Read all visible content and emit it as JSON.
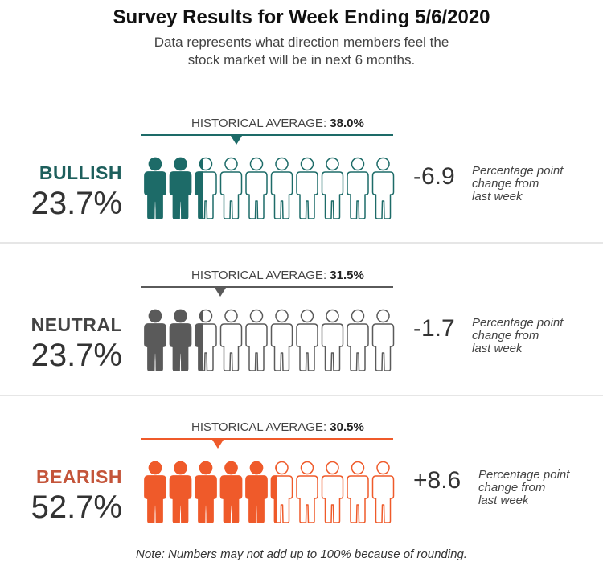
{
  "title": "Survey Results for Week Ending 5/6/2020",
  "subtitle_line1": "Data represents what direction members feel the",
  "subtitle_line2": "stock market will be in next 6 months.",
  "historical_prefix": "HISTORICAL AVERAGE:",
  "note": "Note: Numbers may not add up to 100% because of rounding.",
  "chart_data": {
    "type": "pictograph",
    "icons_per_row": 10,
    "percent_per_icon": 10,
    "change_label": [
      "Percentage point",
      "change from",
      "last week"
    ],
    "categories": [
      {
        "name": "BULLISH",
        "value": 23.7,
        "value_label": "23.7%",
        "historical_average": 38.0,
        "historical_label": "38.0%",
        "change": -6.9,
        "change_label": "-6.9",
        "color": "#1d6b68",
        "name_color": "#1d5f5c"
      },
      {
        "name": "NEUTRAL",
        "value": 23.7,
        "value_label": "23.7%",
        "historical_average": 31.5,
        "historical_label": "31.5%",
        "change": -1.7,
        "change_label": "-1.7",
        "color": "#5a5a5a",
        "name_color": "#444444"
      },
      {
        "name": "BEARISH",
        "value": 52.7,
        "value_label": "52.7%",
        "historical_average": 30.5,
        "historical_label": "30.5%",
        "change": 8.6,
        "change_label": "+8.6",
        "color": "#ef5a2a",
        "name_color": "#c4553a"
      }
    ]
  }
}
